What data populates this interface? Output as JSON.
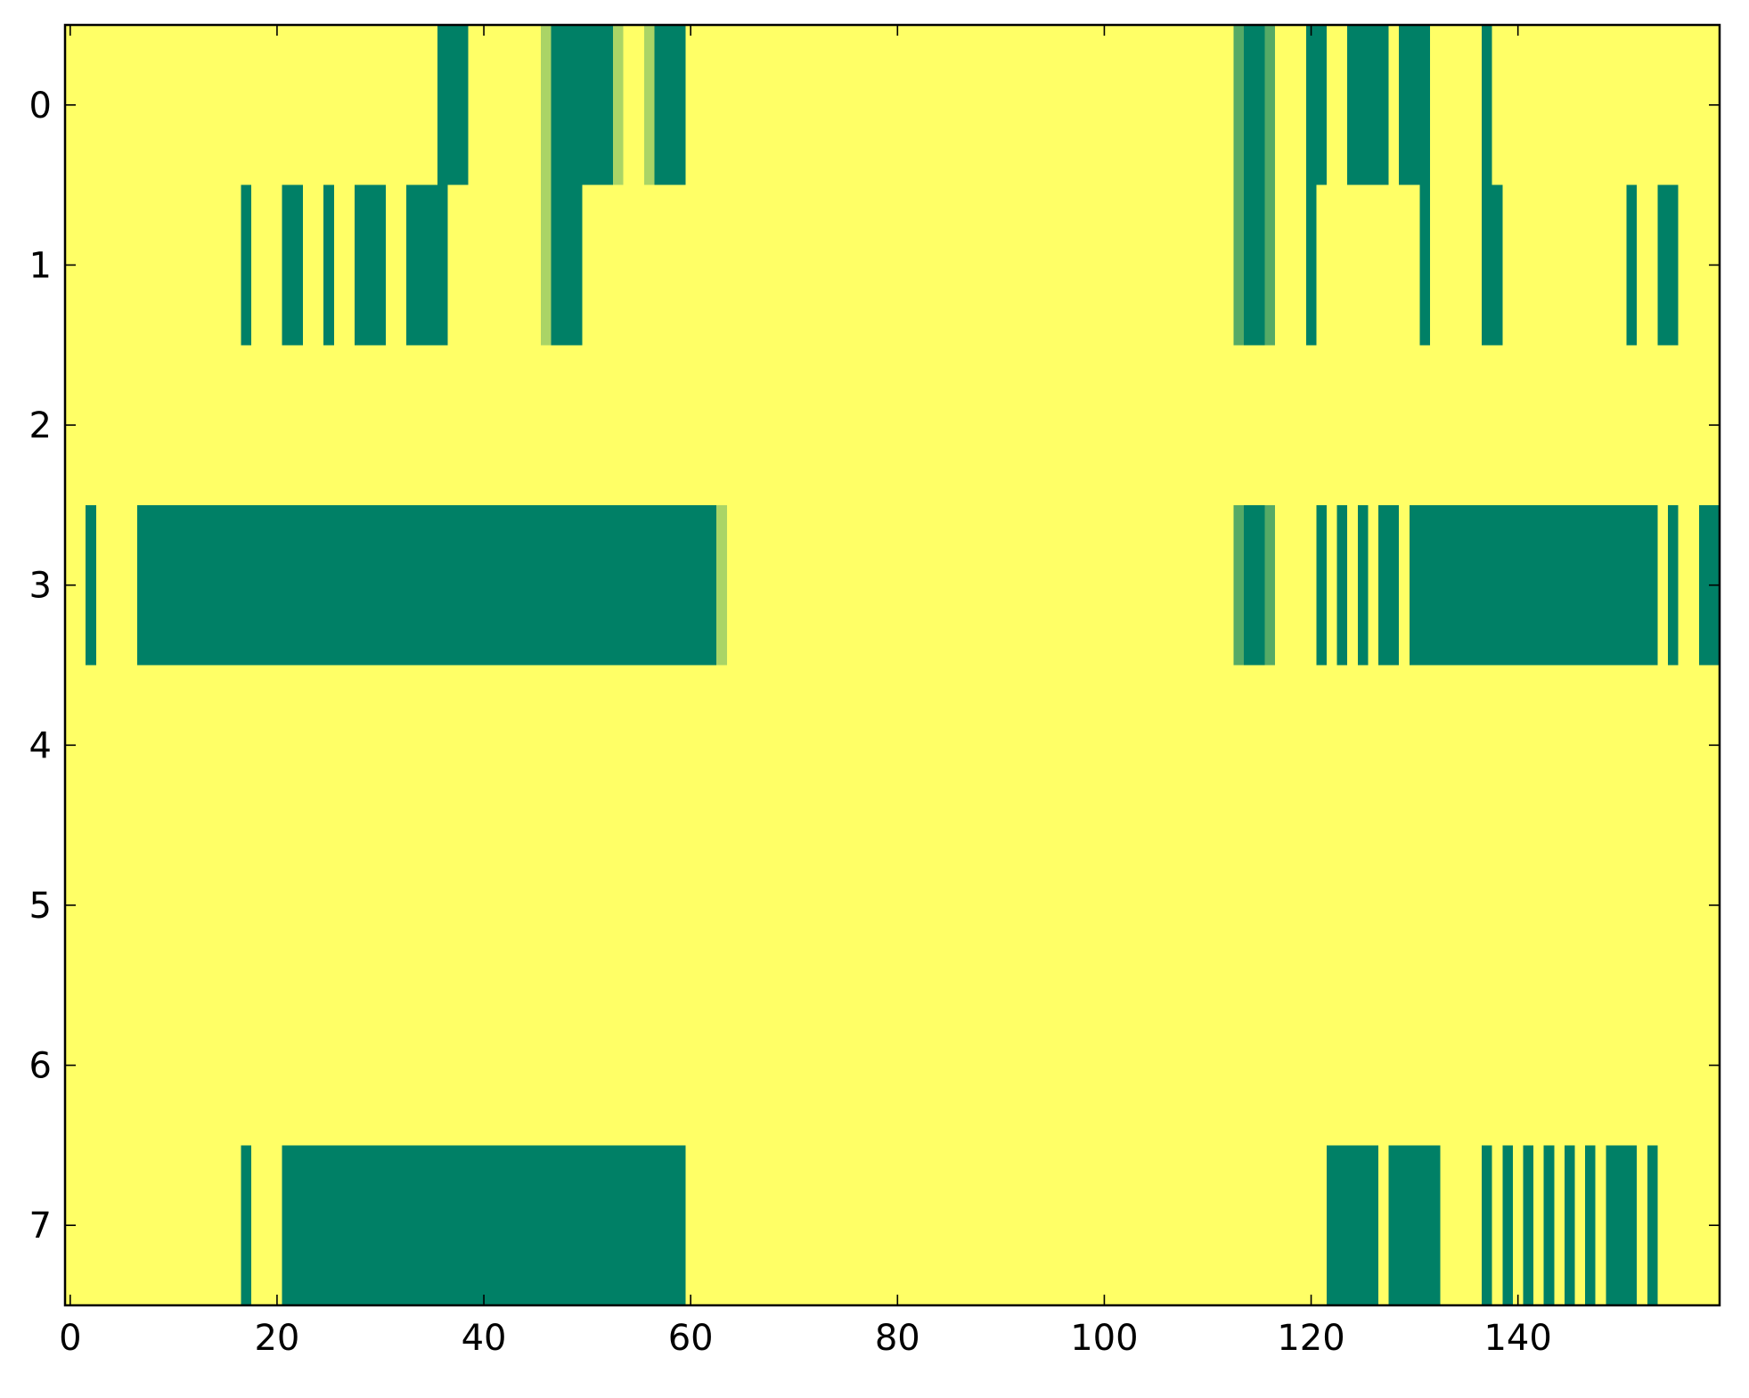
{
  "chart_data": {
    "type": "heatmap",
    "title": "",
    "xlabel": "",
    "ylabel": "",
    "x_range": [
      -0.5,
      159.5
    ],
    "y_range": [
      -0.5,
      7.5
    ],
    "y_inverted": true,
    "grid": false,
    "x_ticks": [
      0,
      20,
      40,
      60,
      80,
      100,
      120,
      140
    ],
    "x_tick_labels": [
      "0",
      "20",
      "40",
      "60",
      "80",
      "100",
      "120",
      "140"
    ],
    "y_ticks": [
      0,
      1,
      2,
      3,
      4,
      5,
      6,
      7
    ],
    "y_tick_labels": [
      "0",
      "1",
      "2",
      "3",
      "4",
      "5",
      "6",
      "7"
    ],
    "colors": {
      "background": "#ffff66",
      "high": "#008066",
      "mid": "#55aa66",
      "low": "#aad466",
      "axis": "#000000"
    },
    "legend": "none",
    "rows": [
      {
        "row": 0,
        "segments": [
          {
            "start": 36,
            "end": 38,
            "level": "high"
          },
          {
            "start": 46,
            "end": 46,
            "level": "low"
          },
          {
            "start": 47,
            "end": 52,
            "level": "high"
          },
          {
            "start": 53,
            "end": 53,
            "level": "low"
          },
          {
            "start": 56,
            "end": 56,
            "level": "low"
          },
          {
            "start": 57,
            "end": 59,
            "level": "high"
          },
          {
            "start": 113,
            "end": 113,
            "level": "mid"
          },
          {
            "start": 114,
            "end": 115,
            "level": "high"
          },
          {
            "start": 116,
            "end": 116,
            "level": "mid"
          },
          {
            "start": 120,
            "end": 121,
            "level": "high"
          },
          {
            "start": 124,
            "end": 127,
            "level": "high"
          },
          {
            "start": 129,
            "end": 131,
            "level": "high"
          },
          {
            "start": 137,
            "end": 137,
            "level": "high"
          }
        ]
      },
      {
        "row": 1,
        "segments": [
          {
            "start": 17,
            "end": 17,
            "level": "high"
          },
          {
            "start": 21,
            "end": 22,
            "level": "high"
          },
          {
            "start": 25,
            "end": 25,
            "level": "high"
          },
          {
            "start": 28,
            "end": 30,
            "level": "high"
          },
          {
            "start": 33,
            "end": 36,
            "level": "high"
          },
          {
            "start": 46,
            "end": 46,
            "level": "low"
          },
          {
            "start": 47,
            "end": 49,
            "level": "high"
          },
          {
            "start": 113,
            "end": 113,
            "level": "mid"
          },
          {
            "start": 114,
            "end": 115,
            "level": "high"
          },
          {
            "start": 116,
            "end": 116,
            "level": "mid"
          },
          {
            "start": 120,
            "end": 120,
            "level": "high"
          },
          {
            "start": 131,
            "end": 131,
            "level": "high"
          },
          {
            "start": 137,
            "end": 138,
            "level": "high"
          },
          {
            "start": 151,
            "end": 151,
            "level": "high"
          },
          {
            "start": 154,
            "end": 155,
            "level": "high"
          }
        ]
      },
      {
        "row": 2,
        "segments": []
      },
      {
        "row": 3,
        "segments": [
          {
            "start": 2,
            "end": 2,
            "level": "high"
          },
          {
            "start": 7,
            "end": 62,
            "level": "high"
          },
          {
            "start": 63,
            "end": 63,
            "level": "low"
          },
          {
            "start": 113,
            "end": 113,
            "level": "mid"
          },
          {
            "start": 114,
            "end": 115,
            "level": "high"
          },
          {
            "start": 116,
            "end": 116,
            "level": "mid"
          },
          {
            "start": 121,
            "end": 121,
            "level": "high"
          },
          {
            "start": 123,
            "end": 123,
            "level": "high"
          },
          {
            "start": 125,
            "end": 125,
            "level": "high"
          },
          {
            "start": 127,
            "end": 128,
            "level": "high"
          },
          {
            "start": 130,
            "end": 153,
            "level": "high"
          },
          {
            "start": 155,
            "end": 155,
            "level": "high"
          },
          {
            "start": 158,
            "end": 159,
            "level": "high"
          }
        ]
      },
      {
        "row": 4,
        "segments": []
      },
      {
        "row": 5,
        "segments": []
      },
      {
        "row": 6,
        "segments": []
      },
      {
        "row": 7,
        "segments": [
          {
            "start": 17,
            "end": 17,
            "level": "high"
          },
          {
            "start": 21,
            "end": 59,
            "level": "high"
          },
          {
            "start": 122,
            "end": 126,
            "level": "high"
          },
          {
            "start": 128,
            "end": 132,
            "level": "high"
          },
          {
            "start": 137,
            "end": 137,
            "level": "high"
          },
          {
            "start": 139,
            "end": 139,
            "level": "high"
          },
          {
            "start": 141,
            "end": 141,
            "level": "high"
          },
          {
            "start": 143,
            "end": 143,
            "level": "high"
          },
          {
            "start": 145,
            "end": 145,
            "level": "high"
          },
          {
            "start": 147,
            "end": 147,
            "level": "high"
          },
          {
            "start": 149,
            "end": 151,
            "level": "high"
          },
          {
            "start": 153,
            "end": 153,
            "level": "high"
          }
        ]
      }
    ]
  }
}
